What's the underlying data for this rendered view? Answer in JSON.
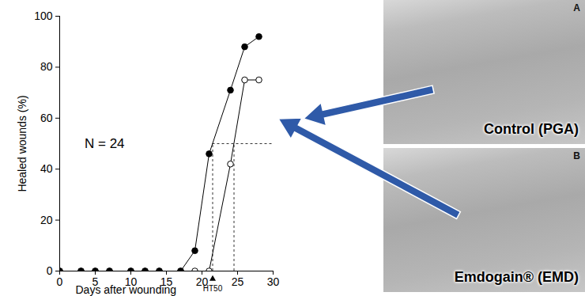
{
  "chart_data": {
    "type": "line",
    "xlabel": "Days after wounding",
    "ylabel": "Healed wounds (%)",
    "x": [
      0,
      3,
      5,
      7,
      10,
      12,
      14,
      17,
      19,
      21,
      24,
      26,
      28
    ],
    "series": [
      {
        "name": "Emdogain® (EMD)",
        "panel": "B",
        "color": "#000000",
        "marker": "filled circle",
        "values": [
          0,
          0,
          0,
          0,
          0,
          0,
          0,
          0,
          8,
          46,
          71,
          88,
          92
        ]
      },
      {
        "name": "Control (PGA)",
        "panel": "A",
        "color": "#000000",
        "marker": "open circle",
        "values": [
          0,
          0,
          0,
          0,
          0,
          0,
          0,
          0,
          0,
          0,
          42,
          75,
          75
        ]
      }
    ],
    "xlim": [
      0,
      30
    ],
    "xticks": [
      0,
      5,
      10,
      15,
      20,
      25,
      30
    ],
    "ylim": [
      0,
      100
    ],
    "yticks": [
      0,
      20,
      40,
      60,
      80,
      100
    ],
    "annotations": [
      {
        "text": "N = 24",
        "x": 3.5,
        "y": 50
      },
      {
        "text": "HT50",
        "x": 21.5,
        "y": 0
      }
    ],
    "reference_lines": {
      "y": 50,
      "x": [
        21.5,
        24.5
      ]
    }
  }
}
